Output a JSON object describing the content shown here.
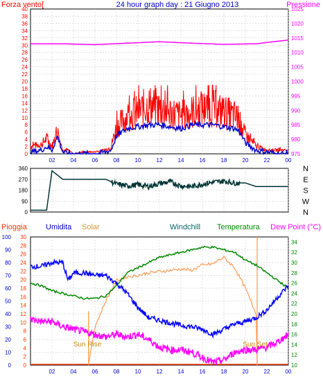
{
  "title": "24 hour graph day : 21 Giugno 2013",
  "colors": {
    "wind": "#ff0000",
    "gust_avg": "#0000cc",
    "pressure": "#ff00ff",
    "direction": "#003333",
    "humidity": "#0000ff",
    "solar": "#cc8800",
    "windchill": "#006666",
    "temperature": "#008800",
    "dewpoint": "#ff00ff",
    "rain": "#ff3300",
    "sunline": "#ff9933",
    "grid": "#c0c0c0",
    "axis_text": "#ff0000"
  },
  "chart_data": [
    {
      "type": "line",
      "panel": "wind-pressure",
      "left_label": "Forza vento[",
      "right_label": "Pressione",
      "x_ticks": [
        "02",
        "04",
        "06",
        "08",
        "10",
        "12",
        "14",
        "16",
        "18",
        "20",
        "22",
        "00"
      ],
      "left_ticks": [
        "0",
        "2",
        "4",
        "6",
        "8",
        "10",
        "12",
        "14",
        "16",
        "18",
        "20",
        "22",
        "24",
        "26",
        "28",
        "30",
        "32",
        "34",
        "36",
        "38",
        "40"
      ],
      "right_ticks": [
        "975",
        "980",
        "985",
        "990",
        "995",
        "1000",
        "1005",
        "1010",
        "1015",
        "1020",
        "1025"
      ],
      "left_range": [
        0,
        40
      ],
      "right_range": [
        975,
        1025
      ],
      "x_range_hours": [
        0,
        24
      ],
      "series": [
        {
          "key": "wind",
          "hours": [
            0,
            1,
            1.5,
            2,
            2.5,
            3,
            3.5,
            4,
            5,
            6,
            7,
            7.5,
            8,
            9,
            10,
            11,
            12,
            13,
            14,
            15,
            16,
            17,
            18,
            19,
            19.5,
            20,
            21,
            22,
            23,
            24
          ],
          "values": [
            2,
            2.5,
            4,
            2,
            6,
            1,
            1,
            0,
            0.5,
            0.5,
            1,
            2,
            7,
            10,
            11,
            13,
            12,
            11,
            10,
            11,
            12,
            12,
            11,
            10,
            8,
            5,
            2,
            1,
            1,
            1
          ]
        },
        {
          "key": "gust_avg",
          "hours": [
            0,
            1,
            1.5,
            2,
            2.5,
            3,
            3.5,
            4,
            5,
            6,
            7,
            7.5,
            8,
            9,
            10,
            11,
            12,
            13,
            14,
            15,
            16,
            17,
            18,
            19,
            19.5,
            20,
            21,
            22,
            23,
            24
          ],
          "values": [
            0.5,
            1,
            2,
            1,
            5,
            0.5,
            0,
            0,
            0,
            0,
            0.5,
            1,
            5,
            7,
            7.5,
            8,
            8,
            7.5,
            7,
            8,
            8,
            8,
            7.5,
            7,
            6,
            3,
            1,
            0.5,
            0,
            0
          ]
        },
        {
          "key": "pressure",
          "hours": [
            0,
            3,
            6,
            9,
            12,
            15,
            18,
            21,
            24
          ],
          "values": [
            1013,
            1013,
            1012.7,
            1013.2,
            1013.7,
            1013.2,
            1012.8,
            1013,
            1014.3
          ]
        }
      ]
    },
    {
      "type": "line",
      "panel": "wind-direction",
      "left_ticks": [
        "0",
        "90",
        "180",
        "270",
        "360"
      ],
      "right_ticks": [
        "N",
        "W",
        "S",
        "E",
        "N"
      ],
      "range": [
        0,
        360
      ],
      "series": [
        {
          "key": "direction",
          "hours": [
            0,
            1.5,
            2,
            3,
            5,
            7,
            7.5,
            8,
            9,
            10,
            11,
            12,
            13,
            14,
            15,
            16,
            17,
            18,
            19,
            20,
            21,
            22,
            23,
            24
          ],
          "values": [
            15,
            15,
            340,
            270,
            270,
            270,
            250,
            230,
            215,
            225,
            210,
            235,
            250,
            215,
            210,
            230,
            245,
            255,
            240,
            240,
            210,
            210,
            210,
            210
          ]
        }
      ]
    },
    {
      "type": "line",
      "panel": "temp-hum-solar",
      "labels": {
        "rain": "Pioggia",
        "humidity": "Umidita",
        "solar": "Solar",
        "windchill": "Windchill",
        "temperature": "Temperatura",
        "dewpoint": "Dew Point (°C)"
      },
      "sun_rise": "Sun Rise",
      "sun_set": "Sun Set",
      "sun_rise_hour": 5.4,
      "sun_set_hour": 21.1,
      "humidity_ticks": [
        "0",
        "10",
        "20",
        "30",
        "40",
        "50",
        "60",
        "70",
        "80",
        "90",
        "100"
      ],
      "rain_ticks": [
        "0",
        "2",
        "4",
        "6",
        "8",
        "10",
        "12",
        "14",
        "16",
        "18",
        "20",
        "22",
        "24",
        "26",
        "28",
        "30"
      ],
      "temp_ticks": [
        "10",
        "12",
        "14",
        "16",
        "18",
        "20",
        "22",
        "24",
        "26",
        "28",
        "30",
        "32",
        "34"
      ],
      "humidity_range": [
        0,
        100
      ],
      "temp_range": [
        10,
        35
      ],
      "series": [
        {
          "key": "humidity",
          "hours": [
            0,
            1,
            2,
            3,
            3.5,
            4,
            5,
            6,
            7,
            8,
            9,
            10,
            11,
            12,
            13,
            14,
            15,
            16,
            17,
            18,
            19,
            20,
            21,
            22,
            23,
            24
          ],
          "values": [
            77,
            77,
            80,
            80,
            66,
            72,
            72,
            70,
            70,
            64,
            56,
            45,
            37,
            35,
            33,
            31,
            30,
            28,
            24,
            28,
            32,
            34,
            37,
            43,
            53,
            62
          ]
        },
        {
          "key": "temperature",
          "hours": [
            0,
            1,
            2,
            3,
            4,
            5,
            6,
            7,
            8,
            9,
            10,
            11,
            12,
            13,
            14,
            15,
            16,
            17,
            18,
            19,
            20,
            21,
            22,
            23,
            24
          ],
          "values": [
            26,
            25.5,
            24.5,
            24,
            23.5,
            23,
            23,
            23.5,
            25.5,
            28,
            29,
            30,
            31,
            31.5,
            32,
            32.5,
            33,
            33,
            32.5,
            32,
            30.5,
            29.5,
            28,
            26.5,
            25
          ]
        },
        {
          "key": "dewpoint",
          "hours": [
            0,
            1,
            2,
            3,
            4,
            5,
            6,
            7,
            8,
            9,
            10,
            11,
            12,
            13,
            14,
            15,
            16,
            17,
            18,
            19,
            20,
            21,
            22,
            23,
            24
          ],
          "values": [
            19,
            18.5,
            18.5,
            17.5,
            17,
            16.5,
            16,
            15.5,
            16,
            15.5,
            16,
            15,
            13.5,
            13,
            13,
            12.5,
            11.5,
            10.5,
            11,
            12.5,
            13,
            13,
            13.5,
            14.5,
            16
          ]
        },
        {
          "key": "solar",
          "hours": [
            5.4,
            6,
            7,
            8,
            9,
            10,
            11,
            12,
            13,
            14,
            15,
            16,
            17,
            17.5,
            18,
            19,
            20,
            21,
            21.1
          ],
          "values": [
            0,
            30,
            50,
            66,
            69,
            70,
            72,
            73,
            74,
            75,
            74,
            78,
            79,
            82,
            84,
            76,
            60,
            40,
            0
          ]
        }
      ],
      "rain_values": "0"
    }
  ]
}
